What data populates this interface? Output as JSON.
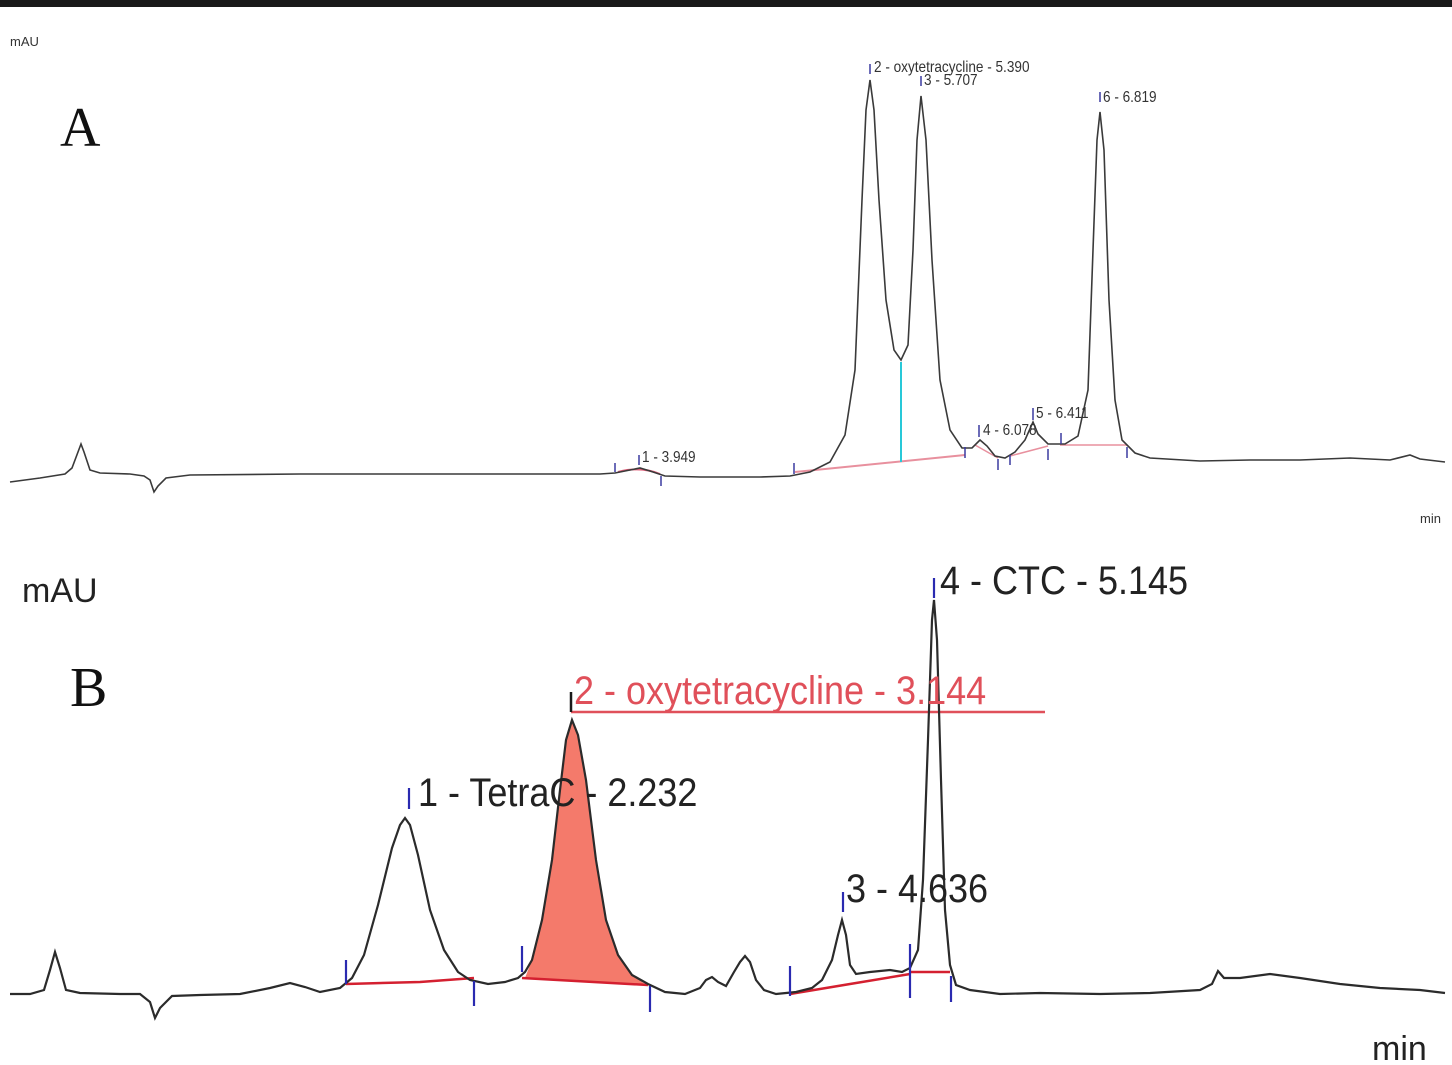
{
  "chart_data": [
    {
      "panel": "A",
      "type": "line",
      "ylabel": "mAU",
      "xlabel": "min",
      "trace_color": "#3a3a3a",
      "baseline_color": "#e0607a",
      "split_line_color": "#28c8d8",
      "tick_color": "#3a3aa0",
      "peaks": [
        {
          "label": "1 - 3.949"
        },
        {
          "label": "2 - oxytetracycline - 5.390"
        },
        {
          "label": "3 - 5.707"
        },
        {
          "label": "4 - 6.078"
        },
        {
          "label": "5 - 6.411"
        },
        {
          "label": "6 - 6.819"
        }
      ]
    },
    {
      "panel": "B",
      "type": "line",
      "ylabel": "mAU",
      "xlabel": "min",
      "trace_color": "#2b2b2b",
      "baseline_color": "#d42030",
      "fill_color": "#f47a6b",
      "highlight_color": "#e0505a",
      "tick_color": "#2a2ab0",
      "peaks": [
        {
          "label": "1 - TetraC - 2.232"
        },
        {
          "label": "2 - oxytetracycline - 3.144",
          "highlighted": true
        },
        {
          "label": "3 - 4.636"
        },
        {
          "label": "4 - CTC - 5.145"
        }
      ]
    }
  ]
}
